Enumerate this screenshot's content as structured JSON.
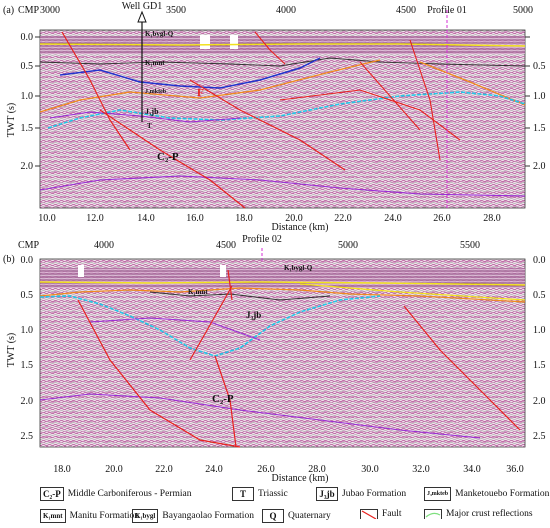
{
  "panel_a": {
    "label": "(a)",
    "cmp_label": "CMP",
    "cmp_ticks": [
      "3000",
      "3500",
      "4000",
      "4500",
      "5000"
    ],
    "well": "Well GD1",
    "profile": "Profile 01",
    "y_ticks": [
      "0.0",
      "0.5",
      "1.0",
      "1.5",
      "2.0"
    ],
    "y_axis": "TWT (s)",
    "x_ticks": [
      "10.0",
      "12.0",
      "14.0",
      "16.0",
      "18.0",
      "20.0",
      "22.0",
      "24.0",
      "26.0",
      "28.0"
    ],
    "x_axis": "Distance (km)",
    "labels": {
      "kbygl": "K₁bygl-Q",
      "kmnt": "K₁mnt",
      "jmkteb": "J₃mkteb",
      "F": "F",
      "jjb": "J₃jb",
      "t": "T",
      "cp": "C₂-P"
    }
  },
  "panel_b": {
    "label": "(b)",
    "cmp_label": "CMP",
    "cmp_ticks": [
      "4000",
      "4500",
      "5000",
      "5500"
    ],
    "profile": "Profile 02",
    "y_ticks": [
      "0.0",
      "0.5",
      "1.0",
      "1.5",
      "2.0",
      "2.5"
    ],
    "y_axis": "TWT (s)",
    "x_ticks": [
      "18.0",
      "20.0",
      "22.0",
      "24.0",
      "26.0",
      "28.0",
      "30.0",
      "32.0",
      "34.0",
      "36.0"
    ],
    "x_axis": "Distance (km)",
    "labels": {
      "kbygl": "K₁bygl-Q",
      "kmnt": "K₁mnt",
      "jjb": "J₃jb",
      "cp": "C₂-P"
    }
  },
  "legend": [
    {
      "symbol": "C₂-P",
      "text": "Middle Carboniferous - Permian"
    },
    {
      "symbol": "T",
      "text": "Triassic"
    },
    {
      "symbol": "J₃jb",
      "text": "Jubao Formation"
    },
    {
      "symbol": "J₃mkteb",
      "text": "Manketouebo Formation"
    },
    {
      "symbol": "K₁mnt",
      "text": "Manitu Formation"
    },
    {
      "symbol": "K₁bygl",
      "text": "Bayangaolao Formation"
    },
    {
      "symbol": "Q",
      "text": "Quaternary"
    },
    {
      "symbol": "fault-line",
      "text": "Fault"
    },
    {
      "symbol": "crust-line",
      "text": "Major crust reflections"
    }
  ],
  "colors": {
    "fault": "#e8221f",
    "crust": "#7fe07f",
    "blue": "#2233cc",
    "cyan": "#22c8e8",
    "orange": "#f08a1e",
    "yellow": "#f2e21e",
    "purple": "#9a2bd6",
    "seismic": "#c76aa6"
  }
}
